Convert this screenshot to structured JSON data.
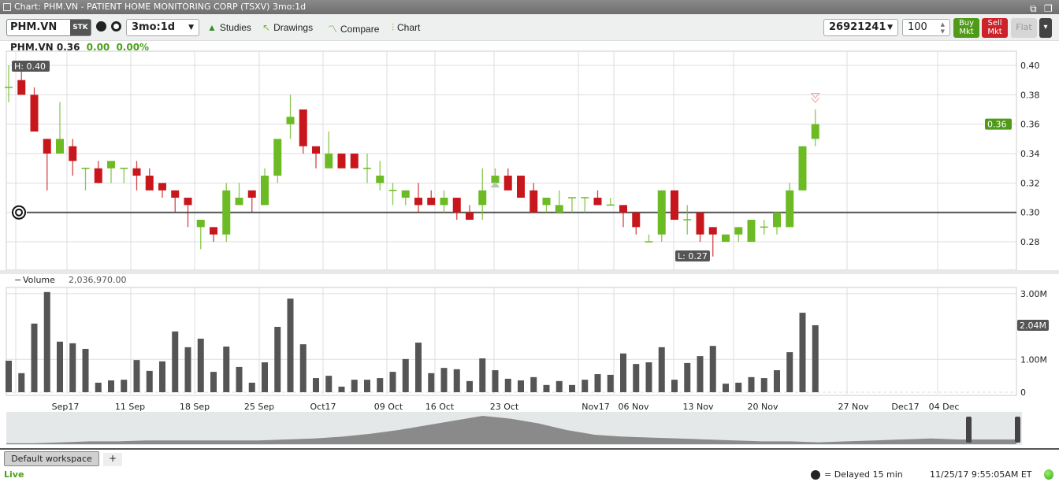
{
  "window": {
    "title": "Chart: PHM.VN - PATIENT HOME MONITORING CORP (TSXV) 3mo:1d"
  },
  "toolbar": {
    "symbol": "PHM.VN",
    "sec_type": "STK",
    "period": "3mo:1d",
    "studies": "Studies",
    "drawings": "Drawings",
    "compare": "Compare",
    "chart": "Chart",
    "account": "26921241",
    "quantity": "100",
    "buy": "Buy Mkt",
    "sell": "Sell Mkt",
    "flat": "Flat"
  },
  "quote": {
    "symbol": "PHM.VN",
    "last": "0.36",
    "change": "0.00",
    "change_pct": "0.00%"
  },
  "price_panel": {
    "high_label": "H: 0.40",
    "low_label": "L: 0.27",
    "last_tag": "0.36",
    "yticks": [
      "0.40",
      "0.38",
      "0.36",
      "0.34",
      "0.32",
      "0.30",
      "0.28"
    ],
    "alert_level": 0.3
  },
  "volume_panel": {
    "label": "Volume",
    "value": "2,036,970.00",
    "yticks": [
      "3.00M",
      "2.04M",
      "1.00M",
      "0"
    ],
    "last_tag": "2.04M"
  },
  "date_labels": [
    "Sep17",
    "11 Sep",
    "18 Sep",
    "25 Sep",
    "Oct17",
    "09 Oct",
    "16 Oct",
    "23 Oct",
    "Nov17",
    "06 Nov",
    "13 Nov",
    "20 Nov",
    "27 Nov",
    "Dec17",
    "04 Dec"
  ],
  "colors": {
    "up": "#6cbb25",
    "down": "#c8171c",
    "buy": "#4f9a18",
    "sell": "#cc2229"
  },
  "chart_data": {
    "type": "candlestick",
    "ylim": [
      0.265,
      0.41
    ],
    "ohlc": [
      [
        0.385,
        0.4,
        0.375,
        0.385
      ],
      [
        0.39,
        0.4,
        0.38,
        0.38
      ],
      [
        0.38,
        0.385,
        0.355,
        0.355
      ],
      [
        0.35,
        0.35,
        0.315,
        0.34
      ],
      [
        0.34,
        0.375,
        0.34,
        0.35
      ],
      [
        0.345,
        0.35,
        0.325,
        0.335
      ],
      [
        0.33,
        0.33,
        0.315,
        0.33
      ],
      [
        0.33,
        0.335,
        0.32,
        0.32
      ],
      [
        0.33,
        0.335,
        0.32,
        0.335
      ],
      [
        0.33,
        0.33,
        0.32,
        0.33
      ],
      [
        0.33,
        0.335,
        0.315,
        0.325
      ],
      [
        0.325,
        0.33,
        0.315,
        0.315
      ],
      [
        0.32,
        0.32,
        0.31,
        0.315
      ],
      [
        0.315,
        0.315,
        0.3,
        0.31
      ],
      [
        0.31,
        0.31,
        0.29,
        0.305
      ],
      [
        0.29,
        0.295,
        0.275,
        0.295
      ],
      [
        0.29,
        0.29,
        0.28,
        0.285
      ],
      [
        0.285,
        0.32,
        0.28,
        0.315
      ],
      [
        0.305,
        0.32,
        0.305,
        0.31
      ],
      [
        0.315,
        0.315,
        0.3,
        0.31
      ],
      [
        0.305,
        0.33,
        0.305,
        0.325
      ],
      [
        0.325,
        0.35,
        0.32,
        0.35
      ],
      [
        0.36,
        0.38,
        0.35,
        0.365
      ],
      [
        0.37,
        0.37,
        0.34,
        0.345
      ],
      [
        0.345,
        0.345,
        0.33,
        0.34
      ],
      [
        0.33,
        0.355,
        0.33,
        0.34
      ],
      [
        0.34,
        0.34,
        0.33,
        0.33
      ],
      [
        0.34,
        0.34,
        0.33,
        0.33
      ],
      [
        0.33,
        0.34,
        0.32,
        0.33
      ],
      [
        0.32,
        0.335,
        0.315,
        0.325
      ],
      [
        0.315,
        0.32,
        0.305,
        0.315
      ],
      [
        0.31,
        0.315,
        0.305,
        0.315
      ],
      [
        0.31,
        0.32,
        0.3,
        0.305
      ],
      [
        0.31,
        0.315,
        0.305,
        0.305
      ],
      [
        0.305,
        0.315,
        0.3,
        0.31
      ],
      [
        0.31,
        0.31,
        0.295,
        0.3
      ],
      [
        0.3,
        0.305,
        0.295,
        0.295
      ],
      [
        0.305,
        0.33,
        0.295,
        0.315
      ],
      [
        0.32,
        0.33,
        0.32,
        0.325
      ],
      [
        0.325,
        0.33,
        0.315,
        0.315
      ],
      [
        0.325,
        0.325,
        0.31,
        0.31
      ],
      [
        0.315,
        0.32,
        0.3,
        0.3
      ],
      [
        0.305,
        0.31,
        0.3,
        0.31
      ],
      [
        0.3,
        0.315,
        0.3,
        0.305
      ],
      [
        0.31,
        0.31,
        0.3,
        0.31
      ],
      [
        0.31,
        0.31,
        0.3,
        0.31
      ],
      [
        0.31,
        0.315,
        0.305,
        0.305
      ],
      [
        0.305,
        0.31,
        0.305,
        0.305
      ],
      [
        0.305,
        0.305,
        0.29,
        0.3
      ],
      [
        0.3,
        0.3,
        0.285,
        0.29
      ],
      [
        0.28,
        0.285,
        0.28,
        0.28
      ],
      [
        0.285,
        0.315,
        0.28,
        0.315
      ],
      [
        0.315,
        0.315,
        0.295,
        0.295
      ],
      [
        0.295,
        0.305,
        0.285,
        0.295
      ],
      [
        0.3,
        0.3,
        0.28,
        0.285
      ],
      [
        0.29,
        0.29,
        0.27,
        0.285
      ],
      [
        0.28,
        0.285,
        0.28,
        0.285
      ],
      [
        0.285,
        0.29,
        0.28,
        0.29
      ],
      [
        0.28,
        0.295,
        0.28,
        0.295
      ],
      [
        0.29,
        0.295,
        0.285,
        0.29
      ],
      [
        0.29,
        0.3,
        0.285,
        0.3
      ],
      [
        0.29,
        0.32,
        0.29,
        0.315
      ],
      [
        0.315,
        0.345,
        0.315,
        0.345
      ],
      [
        0.35,
        0.37,
        0.345,
        0.36
      ]
    ],
    "volume_millions": [
      0.96,
      0.58,
      2.09,
      3.05,
      1.54,
      1.49,
      1.32,
      0.29,
      0.36,
      0.38,
      0.98,
      0.65,
      0.94,
      1.85,
      1.37,
      1.63,
      0.62,
      1.39,
      0.77,
      0.29,
      0.91,
      1.99,
      2.85,
      1.46,
      0.43,
      0.5,
      0.17,
      0.38,
      0.38,
      0.43,
      0.62,
      1.01,
      1.51,
      0.58,
      0.74,
      0.7,
      0.34,
      1.03,
      0.67,
      0.41,
      0.36,
      0.46,
      0.22,
      0.34,
      0.22,
      0.38,
      0.55,
      0.53,
      1.18,
      0.86,
      0.91,
      1.37,
      0.38,
      0.89,
      1.1,
      1.41,
      0.26,
      0.29,
      0.46,
      0.43,
      0.67,
      1.22,
      2.42,
      2.04
    ]
  },
  "workspace": {
    "tab": "Default workspace",
    "add": "+"
  },
  "status": {
    "live": "Live",
    "delayed": "= Delayed 15 min",
    "timestamp": "11/25/17 9:55:05AM ET"
  }
}
